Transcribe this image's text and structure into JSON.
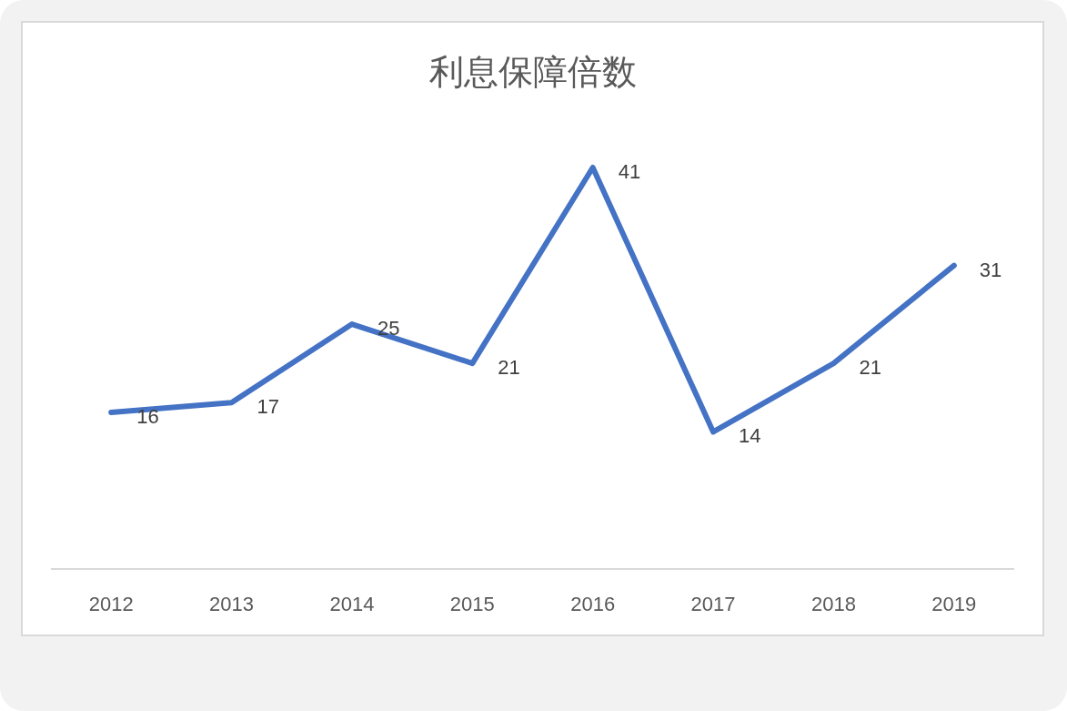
{
  "chart_data": {
    "type": "line",
    "title": "利息保障倍数",
    "categories": [
      "2012",
      "2013",
      "2014",
      "2015",
      "2016",
      "2017",
      "2018",
      "2019"
    ],
    "series": [
      {
        "color": "#4472c4",
        "values": [
          16,
          17,
          25,
          21,
          41,
          14,
          21,
          31
        ]
      }
    ],
    "tick_labels": "x",
    "data_labels": true
  }
}
